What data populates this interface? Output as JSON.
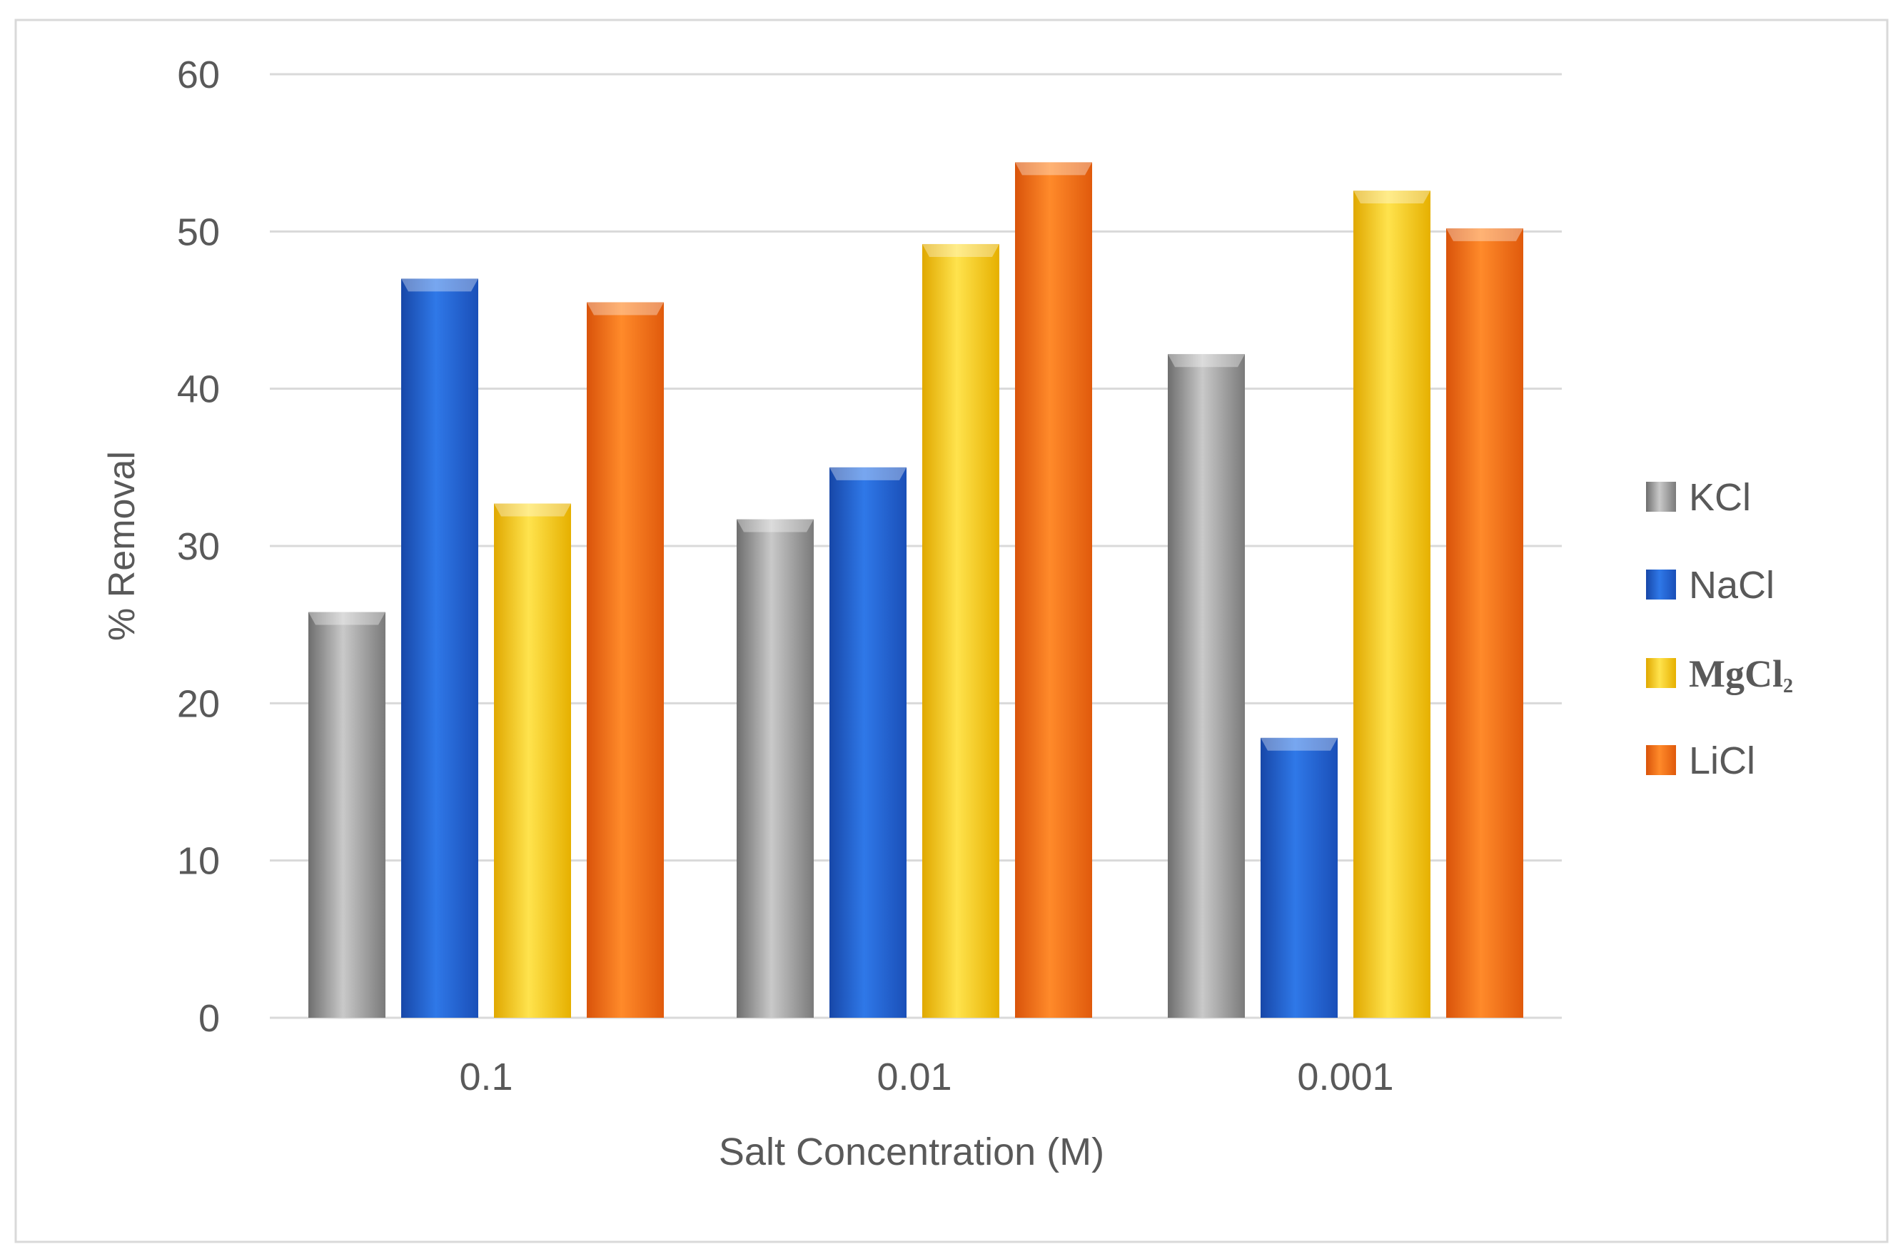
{
  "chart_data": {
    "type": "bar",
    "categories": [
      "0.1",
      "0.01",
      "0.001"
    ],
    "series": [
      {
        "name": "KCl",
        "values": [
          25.8,
          31.7,
          42.2
        ]
      },
      {
        "name": "NaCl",
        "values": [
          47.0,
          35.0,
          17.8
        ]
      },
      {
        "name": "MgCl",
        "name_subscript": "2",
        "values": [
          32.7,
          49.2,
          52.6
        ]
      },
      {
        "name": "LiCl",
        "values": [
          45.5,
          54.4,
          50.2
        ]
      }
    ],
    "xlabel": "Salt Concentration (M)",
    "ylabel": "% Removal",
    "ylim": [
      0,
      60
    ],
    "yticks": [
      "0",
      "10",
      "20",
      "30",
      "40",
      "50",
      "60"
    ],
    "grid": true,
    "legend_position": "right"
  },
  "colors": {
    "KCl": "#8a8a8a",
    "NaCl": "#1f5ccf",
    "MgCl2": "#f2c200",
    "LiCl": "#f06a0f",
    "gridline": "#d9d9d9",
    "text": "#595959",
    "frame": "#d9d9d9"
  }
}
